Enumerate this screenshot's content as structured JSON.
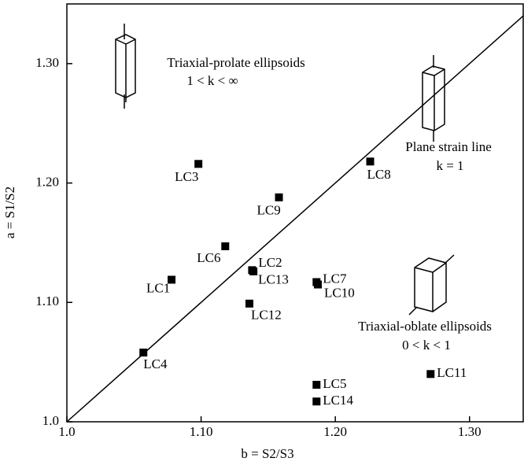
{
  "chart_data": {
    "type": "scatter",
    "x_label": "b = S2/S3",
    "y_label": "a = S1/S2",
    "xlim": [
      1.0,
      1.34
    ],
    "ylim": [
      1.0,
      1.35
    ],
    "xticks": [
      {
        "value": 1.0,
        "label": "1.0"
      },
      {
        "value": 1.1,
        "label": "1.10"
      },
      {
        "value": 1.2,
        "label": "1.20"
      },
      {
        "value": 1.3,
        "label": "1.30"
      }
    ],
    "yticks": [
      {
        "value": 1.0,
        "label": "1.0"
      },
      {
        "value": 1.1,
        "label": "1.10"
      },
      {
        "value": 1.2,
        "label": "1.20"
      },
      {
        "value": 1.3,
        "label": "1.30"
      }
    ],
    "color": "#000000",
    "labels": [
      "LC1",
      "LC2",
      "LC3",
      "LC4",
      "LC5",
      "LC6",
      "LC7",
      "LC8",
      "LC9",
      "LC10",
      "LC11",
      "LC12",
      "LC13",
      "LC14"
    ],
    "x": [
      1.078,
      1.138,
      1.098,
      1.057,
      1.186,
      1.118,
      1.186,
      1.226,
      1.158,
      1.187,
      1.271,
      1.136,
      1.139,
      1.186
    ],
    "values": [
      1.119,
      1.127,
      1.216,
      1.058,
      1.031,
      1.147,
      1.117,
      1.218,
      1.188,
      1.115,
      1.04,
      1.099,
      1.126,
      1.017
    ],
    "annotations": [
      "Triaxial-prolate ellipsoids",
      "1 < k < ∞",
      "Plane strain line",
      "k = 1",
      "Triaxial-oblate ellipsoids",
      "0 < k < 1"
    ]
  }
}
